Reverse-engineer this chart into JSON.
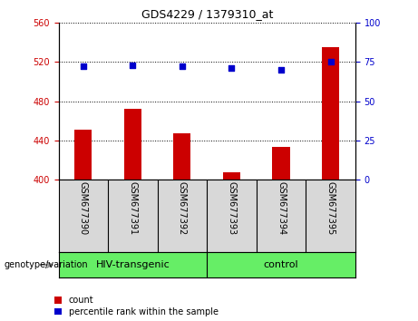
{
  "title": "GDS4229 / 1379310_at",
  "categories": [
    "GSM677390",
    "GSM677391",
    "GSM677392",
    "GSM677393",
    "GSM677394",
    "GSM677395"
  ],
  "bar_values": [
    451,
    472,
    447,
    408,
    433,
    535
  ],
  "scatter_values": [
    72,
    73,
    72,
    71,
    70,
    75
  ],
  "ylim_left": [
    400,
    560
  ],
  "ylim_right": [
    0,
    100
  ],
  "yticks_left": [
    400,
    440,
    480,
    520,
    560
  ],
  "yticks_right": [
    0,
    25,
    50,
    75,
    100
  ],
  "bar_color": "#cc0000",
  "scatter_color": "#0000cc",
  "group1_label": "HIV-transgenic",
  "group2_label": "control",
  "group1_indices": [
    0,
    1,
    2
  ],
  "group2_indices": [
    3,
    4,
    5
  ],
  "group_color": "#66ee66",
  "legend_count_label": "count",
  "legend_percentile_label": "percentile rank within the sample",
  "xlabel_label": "genotype/variation",
  "grid_color": "black",
  "tick_label_bg": "#d8d8d8",
  "fig_width": 4.61,
  "fig_height": 3.54,
  "fig_dpi": 100,
  "bar_width": 0.35,
  "title_fontsize": 9,
  "axis_fontsize": 7,
  "legend_fontsize": 7,
  "group_fontsize": 8
}
